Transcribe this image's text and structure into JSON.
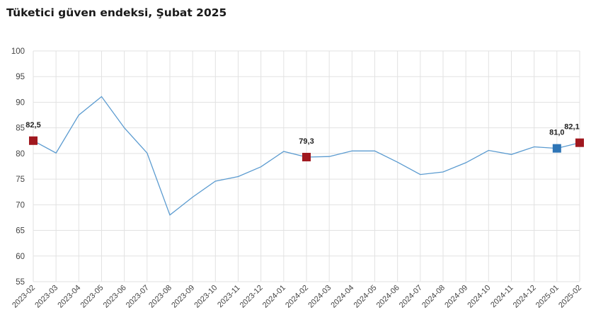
{
  "title": "Tüketici güven endeksi, Şubat 2025",
  "chart_data": {
    "type": "line",
    "title": "Tüketici güven endeksi, Şubat 2025",
    "xlabel": "",
    "ylabel": "",
    "ylim": [
      55,
      100
    ],
    "yticks": [
      55,
      60,
      65,
      70,
      75,
      80,
      85,
      90,
      95,
      100
    ],
    "grid": true,
    "categories": [
      "2023-02",
      "2023-03",
      "2023-04",
      "2023-05",
      "2023-06",
      "2023-07",
      "2023-08",
      "2023-09",
      "2023-10",
      "2023-11",
      "2023-12",
      "2024-01",
      "2024-02",
      "2024-03",
      "2024-04",
      "2024-05",
      "2024-06",
      "2024-07",
      "2024-08",
      "2024-09",
      "2024-10",
      "2024-11",
      "2024-12",
      "2025-01",
      "2025-02"
    ],
    "series": [
      {
        "values": [
          82.5,
          80.1,
          87.5,
          91.1,
          85.0,
          80.1,
          68.0,
          71.5,
          74.6,
          75.5,
          77.4,
          80.4,
          79.3,
          79.4,
          80.5,
          80.5,
          78.3,
          75.9,
          76.4,
          78.2,
          80.6,
          79.8,
          81.3,
          81.0,
          82.1
        ],
        "color": "#5b9bd0"
      }
    ],
    "highlighted_points": [
      {
        "category": "2023-02",
        "value": 82.5,
        "label": "82,5",
        "color": "#a0181f"
      },
      {
        "category": "2024-02",
        "value": 79.3,
        "label": "79,3",
        "color": "#a0181f"
      },
      {
        "category": "2025-01",
        "value": 81.0,
        "label": "81,0",
        "color": "#2e75b6"
      },
      {
        "category": "2025-02",
        "value": 82.1,
        "label": "82,1",
        "color": "#a0181f"
      }
    ]
  }
}
